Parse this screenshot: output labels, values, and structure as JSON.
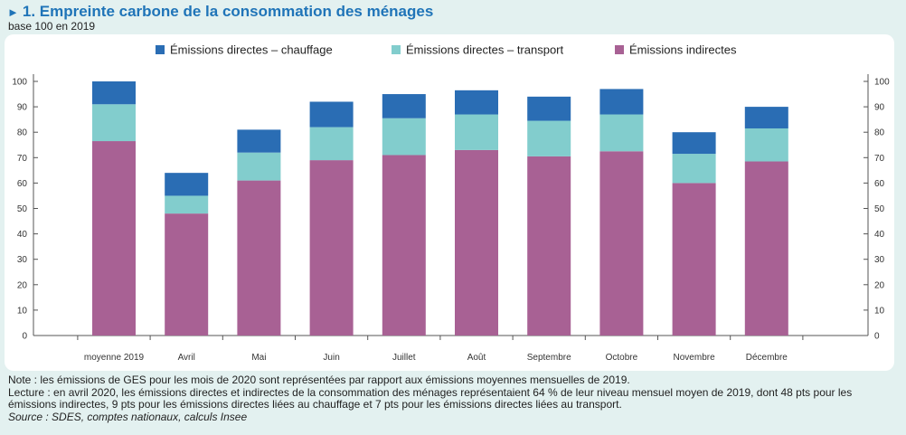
{
  "header": {
    "title": "1. Empreinte carbone de la consommation des ménages",
    "subtitle": "base 100 en 2019"
  },
  "notes": {
    "note": "Note : les émissions de GES pour les mois de 2020 sont représentées par rapport aux émissions moyennes mensuelles de 2019.",
    "lecture": "Lecture : en avril 2020, les émissions directes et indirectes de la consommation des ménages représentaient 64 % de leur niveau mensuel moyen de 2019, dont 48 pts pour les émissions indirectes, 9 pts pour les émissions directes liées au chauffage et 7 pts pour les émissions directes liées au transport.",
    "source": "Source : SDES, comptes nationaux, calculs Insee"
  },
  "chart_data": {
    "type": "bar",
    "stacked": true,
    "categories": [
      "moyenne 2019",
      "Avril",
      "Mai",
      "Juin",
      "Juillet",
      "Août",
      "Septembre",
      "Octobre",
      "Novembre",
      "Décembre"
    ],
    "series": [
      {
        "name": "Émissions indirectes",
        "color": "#a86194",
        "values": [
          76.5,
          48,
          61,
          69,
          71,
          73,
          70.5,
          72.5,
          60,
          68.5
        ]
      },
      {
        "name": "Émissions directes – transport",
        "color": "#82cdcd",
        "values": [
          14.5,
          7,
          11,
          13,
          14.5,
          14,
          14,
          14.5,
          11.5,
          13
        ]
      },
      {
        "name": "Émissions directes – chauffage",
        "color": "#2a6db4",
        "values": [
          9,
          9,
          9,
          10,
          9.5,
          9.5,
          9.5,
          10,
          8.5,
          8.5
        ]
      }
    ],
    "legend_order": [
      "Émissions directes – chauffage",
      "Émissions directes – transport",
      "Émissions indirectes"
    ],
    "legend_position": "top",
    "ylim": [
      0,
      100
    ],
    "yticks": [
      0,
      10,
      20,
      30,
      40,
      50,
      60,
      70,
      80,
      90,
      100
    ],
    "right_axis": true,
    "xlabel": "",
    "ylabel": ""
  }
}
